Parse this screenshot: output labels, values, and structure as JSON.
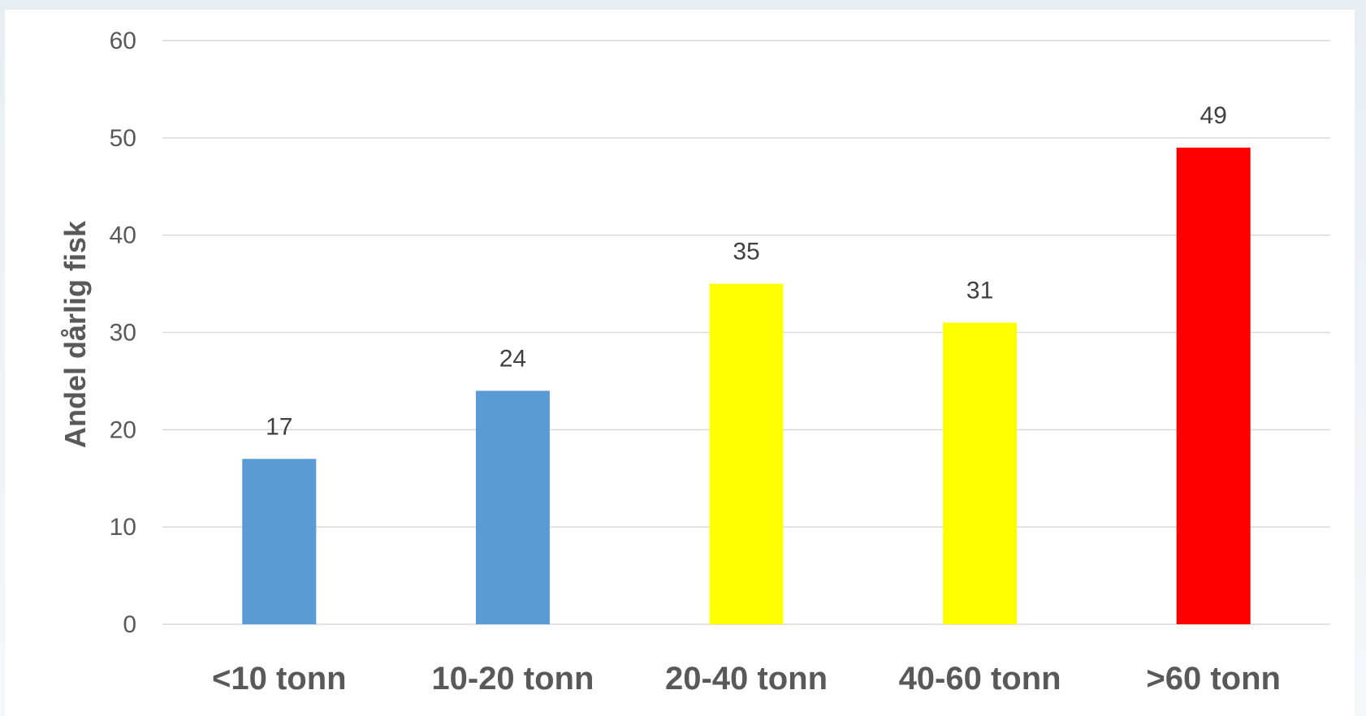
{
  "chart_data": {
    "type": "bar",
    "title": "",
    "xlabel": "",
    "ylabel": "Andel dårlig fisk",
    "categories": [
      "<10 tonn",
      "10-20 tonn",
      "20-40 tonn",
      "40-60 tonn",
      ">60 tonn"
    ],
    "values": [
      17,
      24,
      35,
      31,
      49
    ],
    "data_labels": [
      "17",
      "24",
      "35",
      "31",
      "49"
    ],
    "bar_colors": [
      "#5b9bd5",
      "#5b9bd5",
      "#ffff00",
      "#ffff00",
      "#ff0000"
    ],
    "ylim": [
      0,
      60
    ],
    "yticks": [
      0,
      10,
      20,
      30,
      40,
      50,
      60
    ],
    "grid": true,
    "legend": "none"
  }
}
